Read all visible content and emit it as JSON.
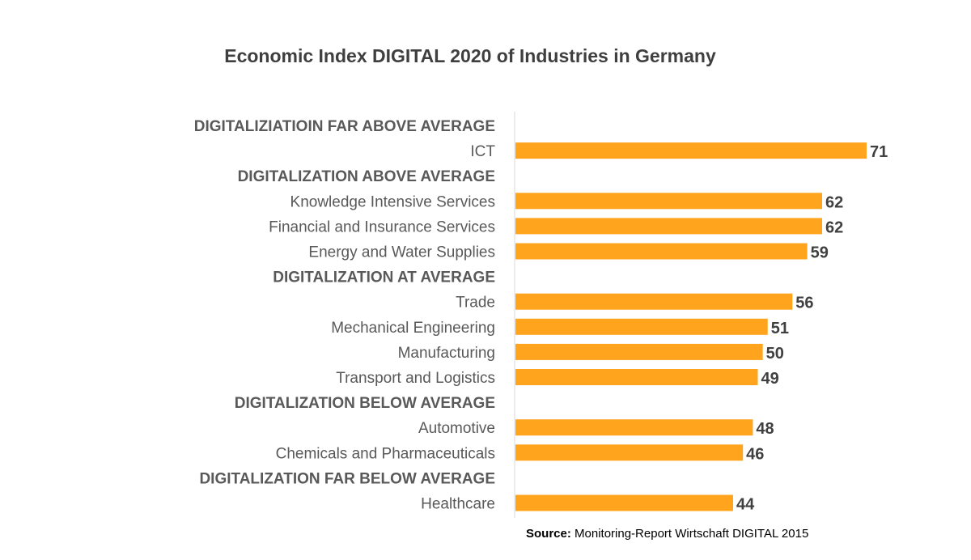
{
  "chart_data": {
    "type": "bar",
    "orientation": "horizontal",
    "title": "Economic Index DIGITAL 2020 of Industries in Germany",
    "xlim": [
      0,
      71
    ],
    "grid": false,
    "legend": "none",
    "bar_color": "#FFA41C",
    "rows": [
      {
        "kind": "group",
        "label": "DIGITALIZIATIOIN FAR ABOVE AVERAGE"
      },
      {
        "kind": "bar",
        "label": "ICT",
        "value": 71
      },
      {
        "kind": "group",
        "label": "DIGITALIZATION ABOVE AVERAGE"
      },
      {
        "kind": "bar",
        "label": "Knowledge Intensive Services",
        "value": 62
      },
      {
        "kind": "bar",
        "label": "Financial and Insurance Services",
        "value": 62
      },
      {
        "kind": "bar",
        "label": "Energy and Water Supplies",
        "value": 59
      },
      {
        "kind": "group",
        "label": "DIGITALIZATION AT AVERAGE"
      },
      {
        "kind": "bar",
        "label": "Trade",
        "value": 56
      },
      {
        "kind": "bar",
        "label": "Mechanical Engineering",
        "value": 51
      },
      {
        "kind": "bar",
        "label": "Manufacturing",
        "value": 50
      },
      {
        "kind": "bar",
        "label": "Transport and Logistics",
        "value": 49
      },
      {
        "kind": "group",
        "label": "DIGITALIZATION BELOW AVERAGE"
      },
      {
        "kind": "bar",
        "label": "Automotive",
        "value": 48
      },
      {
        "kind": "bar",
        "label": "Chemicals and Pharmaceuticals",
        "value": 46
      },
      {
        "kind": "group",
        "label": "DIGITALIZATION FAR BELOW AVERAGE"
      },
      {
        "kind": "bar",
        "label": "Healthcare",
        "value": 44
      }
    ]
  },
  "source": {
    "prefix": "Source:",
    "text": " Monitoring-Report Wirtschaft DIGITAL 2015"
  }
}
